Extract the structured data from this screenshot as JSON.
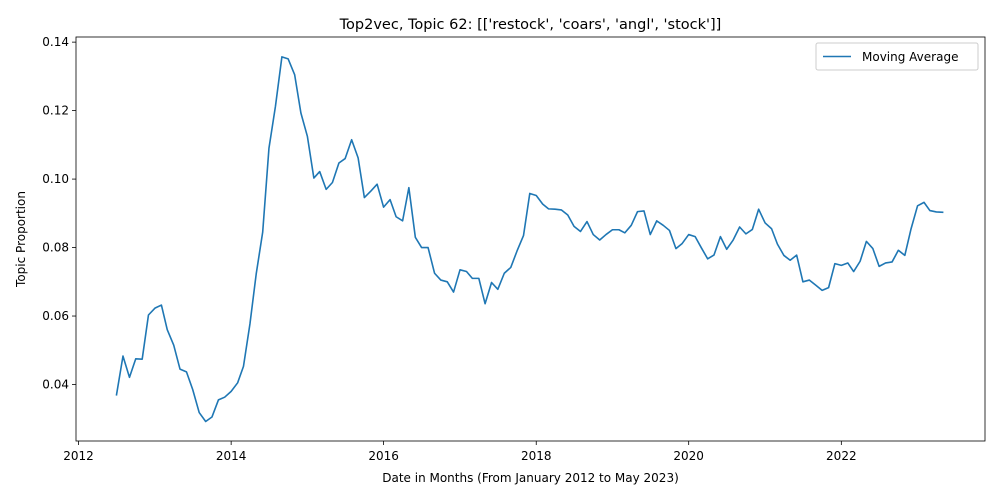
{
  "chart_data": {
    "type": "line",
    "title": "Top2vec, Topic 62: [['restock', 'coars', 'angl', 'stock']]",
    "xlabel": "Date in Months (From January 2012 to May 2023)",
    "ylabel": "Topic Proportion",
    "xlim": [
      "2011-12-20",
      "2023-11-20"
    ],
    "ylim": [
      0.0235,
      0.1415
    ],
    "x_ticks": [
      "2012",
      "2014",
      "2016",
      "2018",
      "2020",
      "2022"
    ],
    "y_ticks": [
      "0.04",
      "0.06",
      "0.08",
      "0.10",
      "0.12",
      "0.14"
    ],
    "grid": false,
    "legend_position": "upper right",
    "line_color": "#1f77b4",
    "series": [
      {
        "name": "Moving Average",
        "x": [
          "2012-07",
          "2012-08",
          "2012-09",
          "2012-10",
          "2012-11",
          "2012-12",
          "2013-01",
          "2013-02",
          "2013-03",
          "2013-04",
          "2013-05",
          "2013-06",
          "2013-07",
          "2013-08",
          "2013-09",
          "2013-10",
          "2013-11",
          "2013-12",
          "2014-01",
          "2014-02",
          "2014-03",
          "2014-04",
          "2014-05",
          "2014-06",
          "2014-07",
          "2014-08",
          "2014-09",
          "2014-10",
          "2014-11",
          "2014-12",
          "2015-01",
          "2015-02",
          "2015-03",
          "2015-04",
          "2015-05",
          "2015-06",
          "2015-07",
          "2015-08",
          "2015-09",
          "2015-10",
          "2015-11",
          "2015-12",
          "2016-01",
          "2016-02",
          "2016-03",
          "2016-04",
          "2016-05",
          "2016-06",
          "2016-07",
          "2016-08",
          "2016-09",
          "2016-10",
          "2016-11",
          "2016-12",
          "2017-01",
          "2017-02",
          "2017-03",
          "2017-04",
          "2017-05",
          "2017-06",
          "2017-07",
          "2017-08",
          "2017-09",
          "2017-10",
          "2017-11",
          "2017-12",
          "2018-01",
          "2018-02",
          "2018-03",
          "2018-04",
          "2018-05",
          "2018-06",
          "2018-07",
          "2018-08",
          "2018-09",
          "2018-10",
          "2018-11",
          "2018-12",
          "2019-01",
          "2019-02",
          "2019-03",
          "2019-04",
          "2019-05",
          "2019-06",
          "2019-07",
          "2019-08",
          "2019-09",
          "2019-10",
          "2019-11",
          "2019-12",
          "2020-01",
          "2020-02",
          "2020-03",
          "2020-04",
          "2020-05",
          "2020-06",
          "2020-07",
          "2020-08",
          "2020-09",
          "2020-10",
          "2020-11",
          "2020-12",
          "2021-01",
          "2021-02",
          "2021-03",
          "2021-04",
          "2021-05",
          "2021-06",
          "2021-07",
          "2021-08",
          "2021-09",
          "2021-10",
          "2021-11",
          "2021-12",
          "2022-01",
          "2022-02",
          "2022-03",
          "2022-04",
          "2022-05",
          "2022-06",
          "2022-07",
          "2022-08",
          "2022-09",
          "2022-10",
          "2022-11",
          "2022-12",
          "2023-01",
          "2023-02",
          "2023-03",
          "2023-04",
          "2023-05"
        ],
        "y": [
          0.037,
          0.0483,
          0.0421,
          0.0475,
          0.0474,
          0.0603,
          0.0623,
          0.0632,
          0.056,
          0.0515,
          0.0445,
          0.0437,
          0.0385,
          0.0318,
          0.0292,
          0.0305,
          0.0355,
          0.0363,
          0.038,
          0.0405,
          0.0453,
          0.0577,
          0.0723,
          0.0845,
          0.109,
          0.1212,
          0.1357,
          0.1351,
          0.1305,
          0.1193,
          0.1125,
          0.1003,
          0.1022,
          0.097,
          0.099,
          0.1047,
          0.106,
          0.1115,
          0.1062,
          0.0946,
          0.0965,
          0.0985,
          0.0918,
          0.094,
          0.089,
          0.0878,
          0.0975,
          0.083,
          0.08,
          0.08,
          0.0725,
          0.0705,
          0.07,
          0.067,
          0.0735,
          0.073,
          0.071,
          0.071,
          0.0636,
          0.0698,
          0.0678,
          0.0725,
          0.0742,
          0.079,
          0.0835,
          0.0958,
          0.0952,
          0.0927,
          0.0913,
          0.0912,
          0.091,
          0.0895,
          0.0862,
          0.0847,
          0.0876,
          0.0838,
          0.0822,
          0.0838,
          0.0852,
          0.0852,
          0.0843,
          0.0865,
          0.0905,
          0.0907,
          0.0838,
          0.0878,
          0.0865,
          0.085,
          0.0797,
          0.0812,
          0.0838,
          0.0832,
          0.08,
          0.0767,
          0.0778,
          0.0832,
          0.0795,
          0.0822,
          0.086,
          0.084,
          0.0853,
          0.0912,
          0.0872,
          0.0855,
          0.081,
          0.0777,
          0.0763,
          0.0778,
          0.07,
          0.0705,
          0.069,
          0.0675,
          0.0683,
          0.0753,
          0.0748,
          0.0755,
          0.073,
          0.076,
          0.0818,
          0.0797,
          0.0745,
          0.0755,
          0.0758,
          0.0792,
          0.0777,
          0.0855,
          0.0922,
          0.0932,
          0.0908,
          0.0904,
          0.0903
        ]
      }
    ]
  }
}
